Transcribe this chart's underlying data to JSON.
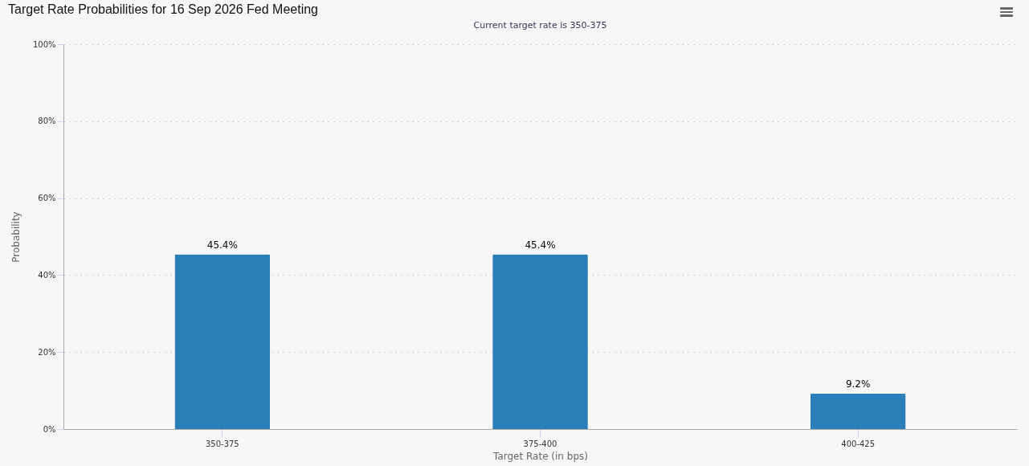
{
  "chart_data": {
    "type": "bar",
    "title": "Target Rate Probabilities for 16 Sep 2026 Fed Meeting",
    "subtitle": "Current target rate is 350-375",
    "xlabel": "Target Rate (in bps)",
    "ylabel": "Probability",
    "categories": [
      "350-375",
      "375-400",
      "400-425"
    ],
    "values": [
      45.4,
      45.4,
      9.2
    ],
    "value_labels": [
      "45.4%",
      "45.4%",
      "9.2%"
    ],
    "color": "#2a7fb8",
    "ylim": [
      0,
      100
    ],
    "yticks": [
      {
        "value": 0,
        "label": "0%"
      },
      {
        "value": 20,
        "label": "20%"
      },
      {
        "value": 40,
        "label": "40%"
      },
      {
        "value": 60,
        "label": "60%"
      },
      {
        "value": 80,
        "label": "80%"
      },
      {
        "value": 100,
        "label": "100%"
      }
    ],
    "grid": "y"
  }
}
